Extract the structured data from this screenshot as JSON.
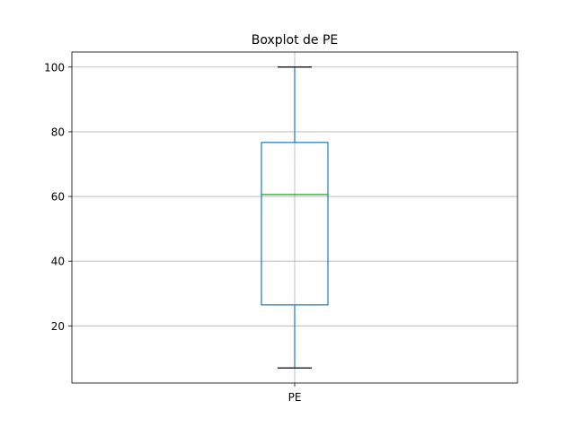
{
  "chart_data": {
    "type": "boxplot",
    "title": "Boxplot de PE",
    "xlabel": "",
    "ylabel": "",
    "categories": [
      "PE"
    ],
    "boxes": [
      {
        "label": "PE",
        "whisker_low": 7,
        "q1": 26.5,
        "median": 60.6,
        "q3": 76.7,
        "whisker_high": 100
      }
    ],
    "ylim": [
      2.35,
      104.65
    ],
    "yticks": [
      20,
      40,
      60,
      80,
      100
    ],
    "grid": true,
    "colors": {
      "box": "#1f77b4",
      "median": "#2ca02c",
      "cap": "#000000",
      "grid": "#b0b0b0",
      "spine": "#000000"
    }
  }
}
